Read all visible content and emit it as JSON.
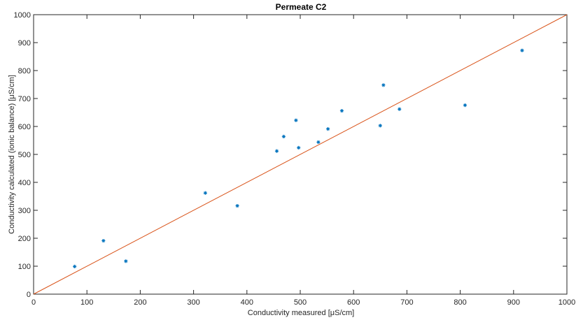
{
  "chart_data": {
    "type": "scatter",
    "title": "Permeate C2",
    "xlabel": "Conductivity measured [μS/cm]",
    "ylabel": "Conductivity calculated (ionic balance) [μS/cm]",
    "xlim": [
      0,
      1000
    ],
    "ylim": [
      0,
      1000
    ],
    "xticks": [
      0,
      100,
      200,
      300,
      400,
      500,
      600,
      700,
      800,
      900,
      1000
    ],
    "yticks": [
      0,
      100,
      200,
      300,
      400,
      500,
      600,
      700,
      800,
      900,
      1000
    ],
    "grid": false,
    "series": [
      {
        "marker": "*",
        "color": "#0072BD",
        "points": [
          {
            "x": 77,
            "y": 99
          },
          {
            "x": 131,
            "y": 191
          },
          {
            "x": 173,
            "y": 118
          },
          {
            "x": 322,
            "y": 362
          },
          {
            "x": 382,
            "y": 316
          },
          {
            "x": 456,
            "y": 512
          },
          {
            "x": 469,
            "y": 564
          },
          {
            "x": 492,
            "y": 622
          },
          {
            "x": 497,
            "y": 524
          },
          {
            "x": 534,
            "y": 544
          },
          {
            "x": 552,
            "y": 591
          },
          {
            "x": 578,
            "y": 656
          },
          {
            "x": 650,
            "y": 603
          },
          {
            "x": 656,
            "y": 748
          },
          {
            "x": 686,
            "y": 662
          },
          {
            "x": 809,
            "y": 676
          },
          {
            "x": 916,
            "y": 872
          }
        ]
      }
    ],
    "reference_line": {
      "from": [
        0,
        0
      ],
      "to": [
        1000,
        1000
      ],
      "color": "#D95319"
    }
  }
}
